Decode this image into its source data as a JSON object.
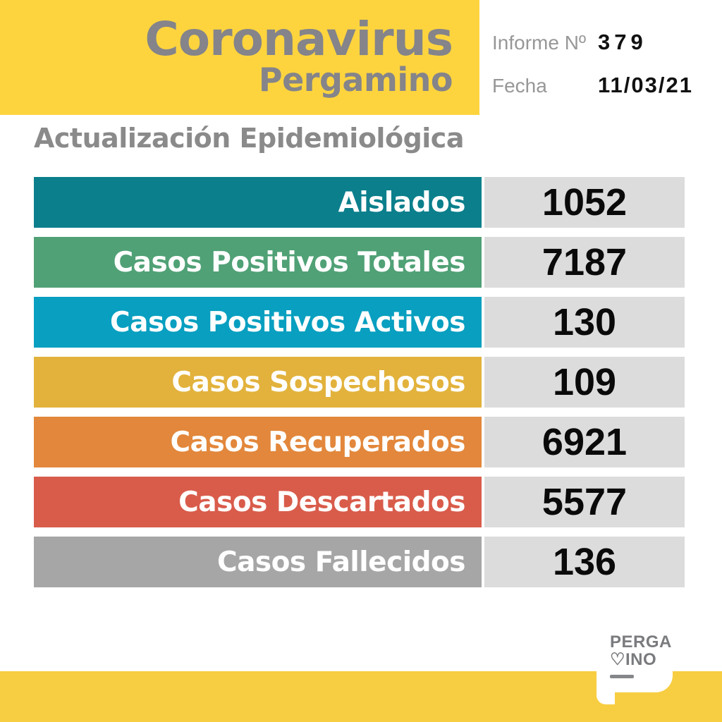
{
  "header": {
    "title_line1": "Coronavirus",
    "title_line2": "Pergamino",
    "report_label": "Informe Nº",
    "report_number": "379",
    "date_label": "Fecha",
    "date_value": "11/03/21"
  },
  "section_title": "Actualización Epidemiológica",
  "table": {
    "rows": [
      {
        "label": "Aislados",
        "value": "1052",
        "color": "#0b7f8c"
      },
      {
        "label": "Casos Positivos Totales",
        "value": "7187",
        "color": "#50a176"
      },
      {
        "label": "Casos Positivos Activos",
        "value": "130",
        "color": "#089fc0"
      },
      {
        "label": "Casos Sospechosos",
        "value": "109",
        "color": "#e2b23c"
      },
      {
        "label": "Casos Recuperados",
        "value": "6921",
        "color": "#e2873b"
      },
      {
        "label": "Casos Descartados",
        "value": "5577",
        "color": "#d95c4b"
      },
      {
        "label": "Casos Fallecidos",
        "value": "136",
        "color": "#a6a6a6"
      }
    ],
    "value_cell_bg": "#dcdcdc"
  },
  "footer_logo": {
    "line1": "PERGA",
    "heart": "♡",
    "line2": "INO"
  },
  "colors": {
    "header_yellow": "#fed43e",
    "footer_yellow": "#f7cd42",
    "title_gray": "#84848a"
  },
  "chart_data": {
    "type": "table",
    "title": "Actualización Epidemiológica",
    "subtitle": "Coronavirus Pergamino — Informe Nº 379 — Fecha 11/03/21",
    "categories": [
      "Aislados",
      "Casos Positivos Totales",
      "Casos Positivos Activos",
      "Casos Sospechosos",
      "Casos Recuperados",
      "Casos Descartados",
      "Casos Fallecidos"
    ],
    "values": [
      1052,
      7187,
      130,
      109,
      6921,
      5577,
      136
    ]
  }
}
